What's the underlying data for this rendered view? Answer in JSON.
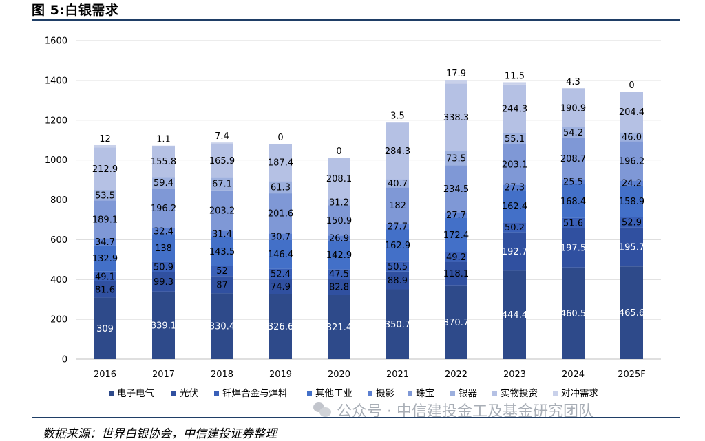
{
  "header": {
    "title": "图 5:白银需求"
  },
  "footer": {
    "source": "数据来源：世界白银协会，中信建投证券整理",
    "watermark": "公众号 · 中信建投金工及基金研究团队"
  },
  "colors": {
    "series": [
      "#2e4a8a",
      "#3050a0",
      "#3a60b8",
      "#4370c8",
      "#5b7fd0",
      "#7f98d6",
      "#9db0de",
      "#b5c1e4",
      "#c9d1ea"
    ],
    "rule": "#1f3e66"
  },
  "chart_data": {
    "type": "bar",
    "stacked": true,
    "categories": [
      "2016",
      "2017",
      "2018",
      "2019",
      "2020",
      "2021",
      "2022",
      "2023",
      "2024",
      "2025F"
    ],
    "ylim": [
      0,
      1600
    ],
    "yticks": [
      0,
      200,
      400,
      600,
      800,
      1000,
      1200,
      1400,
      1600
    ],
    "grid": true,
    "legend_position": "bottom",
    "series": [
      {
        "name": "电子电气",
        "values": [
          309,
          339.1,
          330.4,
          326.6,
          321.4,
          350.7,
          370.7,
          444.4,
          460.5,
          465.6
        ]
      },
      {
        "name": "光伏",
        "values": [
          81.6,
          99.3,
          87,
          74.9,
          82.8,
          88.9,
          118.1,
          192.7,
          197.5,
          195.7
        ]
      },
      {
        "name": "钎焊合金与焊料",
        "values": [
          49.1,
          50.9,
          52,
          52.4,
          47.5,
          50.5,
          49.2,
          50.2,
          51.6,
          52.9
        ]
      },
      {
        "name": "其他工业",
        "values": [
          132.9,
          138,
          143.5,
          146.4,
          142.9,
          162.9,
          172.4,
          162.4,
          168.4,
          158.9
        ]
      },
      {
        "name": "摄影",
        "values": [
          34.7,
          32.4,
          31.4,
          30.7,
          26.9,
          27.7,
          27.7,
          27.3,
          25.5,
          24.2
        ]
      },
      {
        "name": "珠宝",
        "values": [
          189.1,
          196.2,
          203.2,
          201.6,
          150.9,
          182,
          234.5,
          203.1,
          208.7,
          196.2
        ]
      },
      {
        "name": "银器",
        "values": [
          53.5,
          59.4,
          67.1,
          61.3,
          31.2,
          40.7,
          73.5,
          55.1,
          54.2,
          46.0
        ]
      },
      {
        "name": "实物投资",
        "values": [
          212.9,
          155.8,
          165.9,
          187.4,
          208.1,
          284.3,
          338.3,
          244.3,
          190.9,
          204.4
        ]
      },
      {
        "name": "对冲需求",
        "values": [
          12,
          1.1,
          7.4,
          0,
          0,
          3.5,
          17.9,
          11.5,
          4.3,
          0
        ]
      }
    ],
    "value_labels": [
      [
        "309",
        "81.6",
        "49.1",
        "132.9",
        "34.7",
        "189.1",
        "53.5",
        "212.9",
        "12"
      ],
      [
        "339.1",
        "99.3",
        "50.9",
        "138",
        "32.4",
        "196.2",
        "59.4",
        "155.8",
        "1.1"
      ],
      [
        "330.4",
        "87",
        "52",
        "143.5",
        "31.4",
        "203.2",
        "67.1",
        "165.9",
        "7.4"
      ],
      [
        "326.6",
        "74.9",
        "52.4",
        "146.4",
        "30.7",
        "201.6",
        "61.3",
        "187.4",
        "0"
      ],
      [
        "321.4",
        "82.8",
        "47.5",
        "142.9",
        "26.9",
        "150.9",
        "31.2",
        "208.1",
        "0"
      ],
      [
        "350.7",
        "88.9",
        "50.5",
        "162.9",
        "27.7",
        "182",
        "40.7",
        "284.3",
        "3.5"
      ],
      [
        "370.7",
        "118.1",
        "49.2",
        "172.4",
        "27.7",
        "234.5",
        "73.5",
        "338.3",
        "17.9"
      ],
      [
        "444.4",
        "192.7",
        "50.2",
        "162.4",
        "27.3",
        "203.1",
        "55.1",
        "244.3",
        "11.5"
      ],
      [
        "460.5",
        "197.5",
        "51.6",
        "168.4",
        "25.5",
        "208.7",
        "54.2",
        "190.9",
        "4.3"
      ],
      [
        "465.6",
        "195.7",
        "52.9",
        "158.9",
        "24.2",
        "196.2",
        "46.0",
        "204.4",
        "0"
      ]
    ]
  }
}
